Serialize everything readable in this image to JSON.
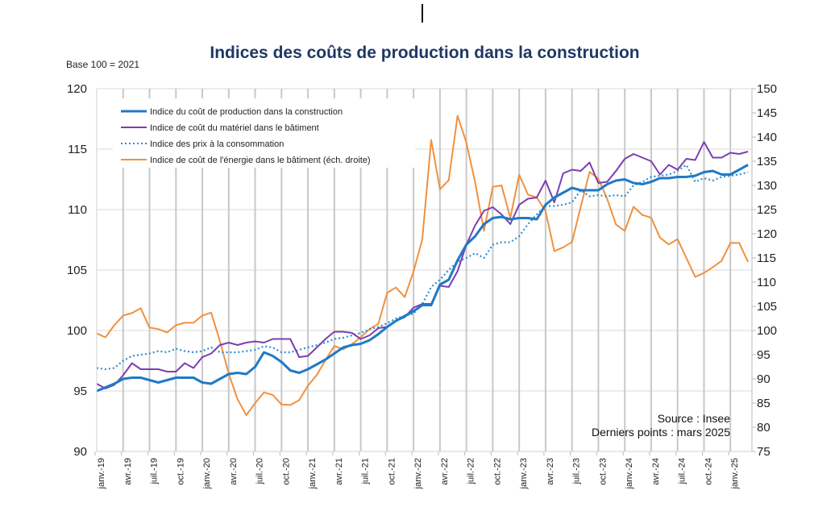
{
  "chart_data": {
    "type": "line",
    "title": "Indices des coûts de production dans la construction",
    "subtitle": "Base 100 = 2021",
    "x_start": "janv.-19",
    "x_end": "mars 2025",
    "x_frequency": "monthly",
    "x_tick_labels": [
      "janv.-19",
      "avr.-19",
      "juil.-19",
      "oct.-19",
      "janv.-20",
      "avr.-20",
      "juil.-20",
      "oct.-20",
      "janv.-21",
      "avr.-21",
      "juil.-21",
      "oct.-21",
      "janv.-22",
      "avr.-22",
      "juil.-22",
      "oct.-22",
      "janv.-23",
      "avr.-23",
      "juil.-23",
      "oct.-23",
      "janv.-24",
      "avr.-24",
      "juil.-24",
      "oct.-24",
      "janv.-25"
    ],
    "y_left": {
      "range": [
        90,
        120
      ],
      "ticks": [
        90,
        95,
        100,
        105,
        110,
        115,
        120
      ]
    },
    "y_right": {
      "range": [
        75,
        150
      ],
      "ticks": [
        75,
        80,
        85,
        90,
        95,
        100,
        105,
        110,
        115,
        120,
        125,
        130,
        135,
        140,
        145,
        150
      ]
    },
    "grid": {
      "horizontal": true,
      "vertical": true
    },
    "legend_placement": "top-left",
    "series": [
      {
        "name": "Indice du coût de production dans la construction",
        "axis": "left",
        "style": "solid-thick",
        "color": "#1f7ac6",
        "values": [
          95.0,
          95.3,
          95.6,
          96.0,
          96.1,
          96.1,
          95.9,
          95.7,
          95.9,
          96.1,
          96.1,
          96.1,
          95.7,
          95.6,
          96.0,
          96.4,
          96.5,
          96.4,
          97.0,
          98.2,
          97.9,
          97.4,
          96.7,
          96.5,
          96.8,
          97.2,
          97.6,
          98.1,
          98.6,
          98.8,
          98.9,
          99.2,
          99.7,
          100.3,
          100.8,
          101.2,
          101.6,
          102.1,
          102.1,
          103.8,
          104.2,
          105.8,
          107.1,
          107.8,
          108.8,
          109.3,
          109.4,
          109.2,
          109.3,
          109.3,
          109.2,
          110.4,
          111.0,
          111.4,
          111.8,
          111.6,
          111.6,
          111.6,
          112.1,
          112.4,
          112.5,
          112.2,
          112.1,
          112.3,
          112.6,
          112.6,
          112.7,
          112.7,
          112.8,
          113.1,
          113.2,
          112.9,
          112.9,
          113.3,
          113.7
        ]
      },
      {
        "name": "Indice de coût du matériel dans le bâtiment",
        "axis": "left",
        "style": "solid",
        "color": "#7b3fb0",
        "values": [
          95.6,
          95.2,
          95.5,
          96.3,
          97.3,
          96.8,
          96.8,
          96.8,
          96.6,
          96.6,
          97.3,
          96.9,
          97.8,
          98.1,
          98.8,
          99.0,
          98.8,
          99.0,
          99.1,
          99.0,
          99.3,
          99.3,
          99.3,
          97.8,
          97.9,
          98.6,
          99.3,
          99.9,
          99.9,
          99.8,
          99.3,
          99.6,
          100.2,
          100.3,
          100.8,
          101.1,
          101.9,
          102.2,
          102.2,
          103.7,
          103.6,
          104.9,
          107.1,
          108.7,
          109.9,
          110.2,
          109.6,
          108.8,
          110.4,
          110.9,
          111.0,
          112.4,
          110.6,
          113.0,
          113.3,
          113.2,
          113.9,
          112.2,
          112.3,
          113.2,
          114.2,
          114.6,
          114.3,
          114.0,
          112.9,
          113.7,
          113.3,
          114.2,
          114.1,
          115.6,
          114.3,
          114.3,
          114.7,
          114.6,
          114.8
        ]
      },
      {
        "name": "Indice des prix à la consommation",
        "axis": "left",
        "style": "dotted",
        "color": "#2e8fd0",
        "values": [
          96.9,
          96.8,
          96.9,
          97.5,
          97.9,
          98.0,
          98.1,
          98.3,
          98.2,
          98.5,
          98.3,
          98.2,
          98.3,
          98.6,
          98.2,
          98.2,
          98.2,
          98.3,
          98.4,
          98.7,
          98.6,
          98.2,
          98.2,
          98.4,
          98.6,
          98.8,
          99.0,
          99.3,
          99.4,
          99.6,
          99.8,
          100.1,
          100.3,
          100.6,
          101.0,
          101.2,
          101.4,
          102.2,
          103.6,
          104.2,
          105.0,
          105.7,
          106.0,
          106.4,
          106.0,
          107.1,
          107.3,
          107.3,
          107.8,
          108.8,
          109.6,
          110.3,
          110.3,
          110.4,
          110.6,
          111.6,
          111.1,
          111.2,
          111.1,
          111.2,
          111.1,
          112.0,
          112.3,
          112.7,
          112.8,
          112.9,
          113.2,
          113.7,
          112.3,
          112.6,
          112.4,
          112.7,
          112.8,
          112.9,
          113.1
        ]
      },
      {
        "name": "Indice de coût de l'énergie dans le bâtiment (éch. droite)",
        "axis": "right",
        "style": "solid",
        "color": "#f0913f",
        "values": [
          99.4,
          98.6,
          101.1,
          103.1,
          103.6,
          104.6,
          100.6,
          100.3,
          99.6,
          101.1,
          101.6,
          101.6,
          103.1,
          103.7,
          97.8,
          91.1,
          85.8,
          82.5,
          85.0,
          87.2,
          86.7,
          84.7,
          84.6,
          85.6,
          88.6,
          90.8,
          93.9,
          96.8,
          96.1,
          97.2,
          98.6,
          100.3,
          101.4,
          107.8,
          108.9,
          106.9,
          112.2,
          118.9,
          139.4,
          129.2,
          131.1,
          144.4,
          138.9,
          130.6,
          120.6,
          129.7,
          130.0,
          123.3,
          132.2,
          128.1,
          127.5,
          124.7,
          116.4,
          117.2,
          118.3,
          125.6,
          132.8,
          131.4,
          127.2,
          121.9,
          120.6,
          125.6,
          123.9,
          123.3,
          119.2,
          117.8,
          118.9,
          115.0,
          111.1,
          111.9,
          113.1,
          114.4,
          118.1,
          118.1,
          114.2
        ]
      }
    ],
    "annotations": [
      "Source : Insee",
      "Derniers points : mars 2025"
    ]
  }
}
